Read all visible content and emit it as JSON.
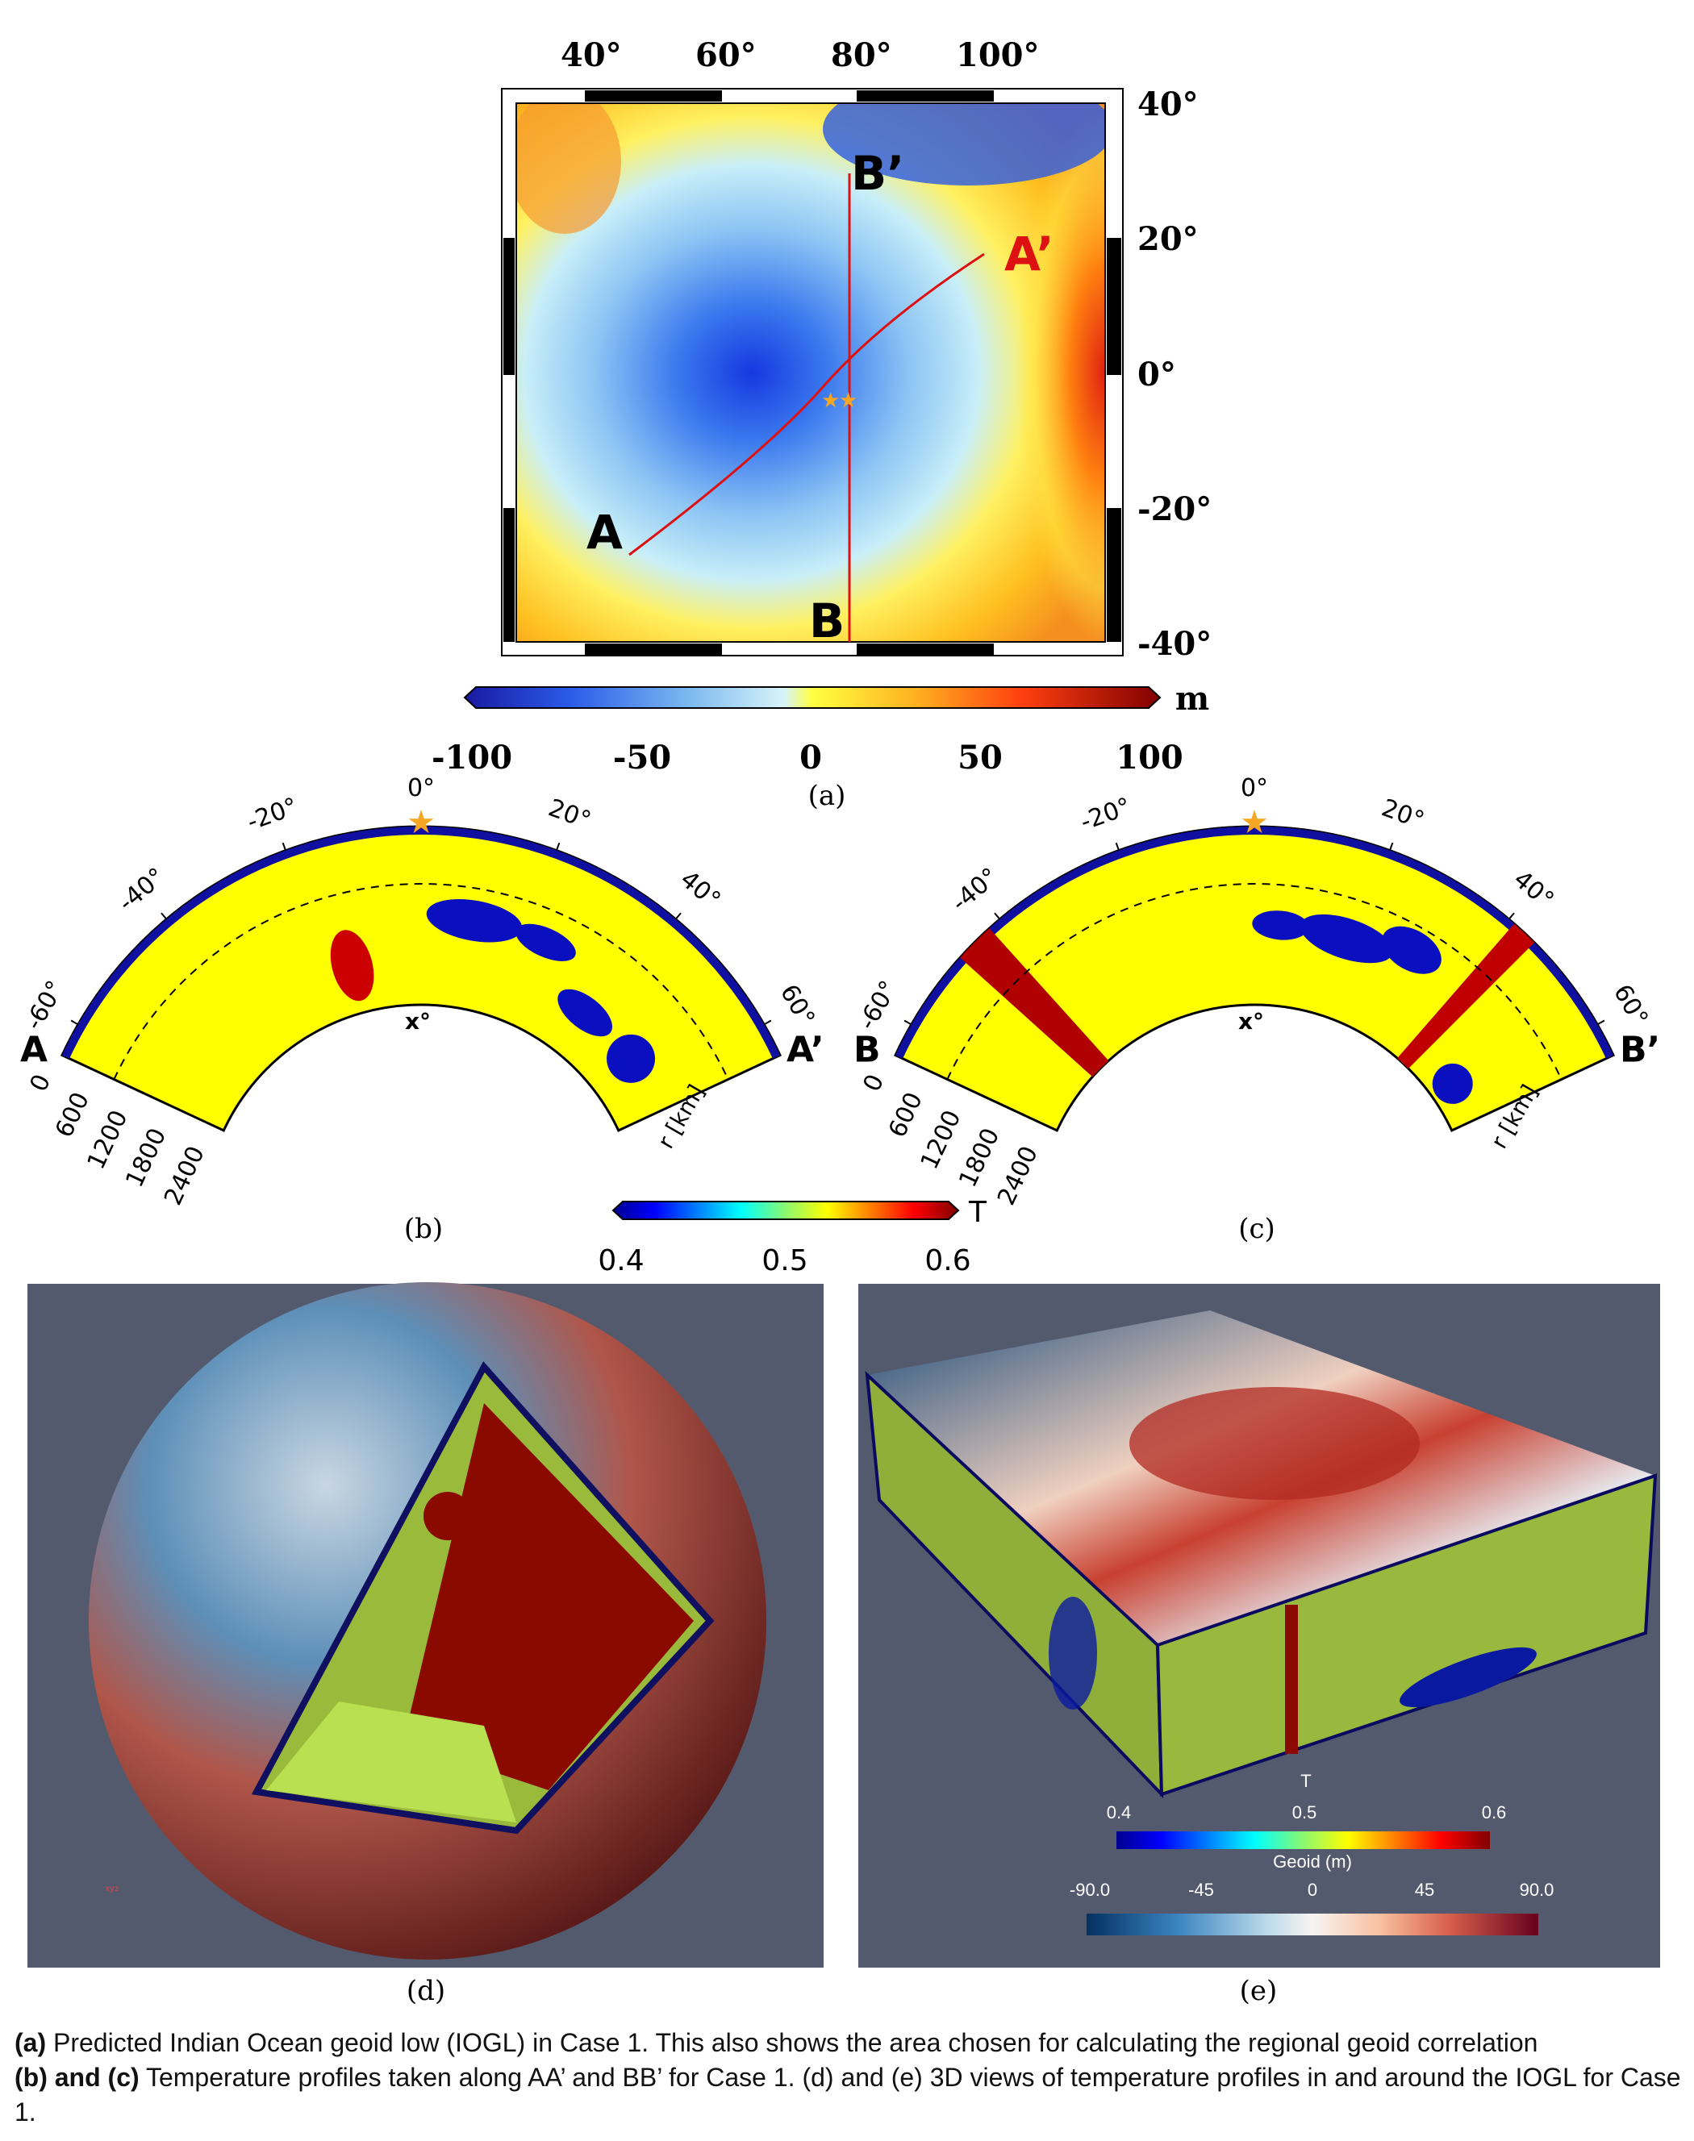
{
  "panel_a": {
    "top_ticks": [
      "40°",
      "60°",
      "80°",
      "100°"
    ],
    "right_ticks": [
      "40°",
      "20°",
      "0°",
      "-20°",
      "-40°"
    ],
    "profile_labels": {
      "a": "A",
      "a_prime": "A’",
      "b": "B",
      "b_prime": "B’"
    },
    "colorbar": {
      "unit": "m",
      "ticks": [
        "-100",
        "-50",
        "0",
        "50",
        "100"
      ],
      "range": [
        -100,
        100
      ]
    },
    "label": "(a)",
    "colors": {
      "profile_line": "#dd1111",
      "star": "#f5a623"
    }
  },
  "panel_b": {
    "angle_ticks": [
      "-60°",
      "-40°",
      "-20°",
      "0°",
      "20°",
      "40°",
      "60°"
    ],
    "depth_ticks": [
      "0",
      "600",
      "1200",
      "1800",
      "2400"
    ],
    "x_label": "x°",
    "r_label": "r [km]",
    "start": "A",
    "end": "A’",
    "label": "(b)"
  },
  "panel_c": {
    "angle_ticks": [
      "-60°",
      "-40°",
      "-20°",
      "0°",
      "20°",
      "40°",
      "60°"
    ],
    "depth_ticks": [
      "0",
      "600",
      "1200",
      "1800",
      "2400"
    ],
    "x_label": "x°",
    "r_label": "r [km]",
    "start": "B",
    "end": "B’",
    "label": "(c)"
  },
  "temp_colorbar": {
    "title": "T",
    "ticks": [
      "0.4",
      "0.5",
      "0.6"
    ],
    "range": [
      0.4,
      0.6
    ]
  },
  "panel_d": {
    "label": "(d)",
    "background": "#545a6e"
  },
  "panel_e": {
    "label": "(e)",
    "background": "#545a6e",
    "t_bar": {
      "title": "T",
      "ticks": [
        "0.4",
        "0.5",
        "0.6"
      ]
    },
    "geoid_bar": {
      "title": "Geoid (m)",
      "ticks": [
        "-90.0",
        "-45",
        "0",
        "45",
        "90.0"
      ]
    }
  },
  "caption": {
    "line1_bold": "(a)",
    "line1": " Predicted Indian Ocean geoid low (IOGL) in Case 1. This also shows the area chosen for calculating the regional geoid correlation",
    "line2_bold": "(b) and (c)",
    "line2": " Temperature profiles taken along AA’ and BB’ for Case 1. (d) and (e) 3D views of temperature profiles in and around the IOGL for Case 1."
  }
}
